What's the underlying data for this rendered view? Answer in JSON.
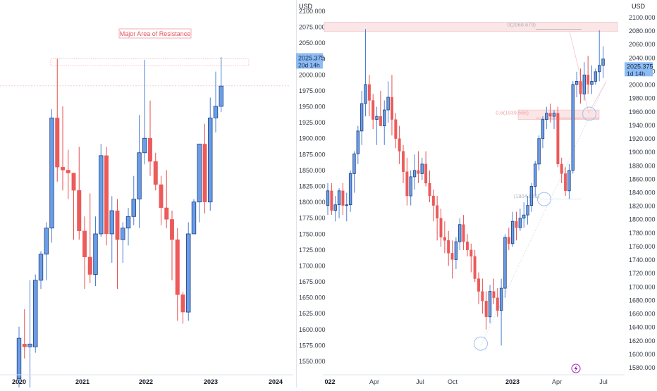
{
  "colors": {
    "up_body": "#6a9de8",
    "up_wick": "#4a7fd6",
    "down_body": "#ec5a5a",
    "down_wick": "#e84e4e",
    "price_tag": "#8fbcf2",
    "resistance": "#f19ba0",
    "circle": "#9ec1ee",
    "divider": "#e0e3eb",
    "flash_icon": "#9c27b0"
  },
  "chart_data": [
    {
      "type": "candlestick",
      "timeframe": "monthly",
      "currency_label": "",
      "ylim": [
        1550,
        2140
      ],
      "x_ticks": [
        "2020",
        "2021",
        "2022",
        "2023",
        "2024"
      ],
      "last_price": "2025.375",
      "countdown": "20d 14h",
      "annotation": "Major Area of Resistance",
      "resistance_zone": [
        2060,
        2072
      ],
      "candles": [
        {
          "o": 1520,
          "h": 1610,
          "l": 1455,
          "c": 1590
        },
        {
          "o": 1580,
          "h": 1640,
          "l": 1555,
          "c": 1575
        },
        {
          "o": 1575,
          "h": 1690,
          "l": 1470,
          "c": 1580
        },
        {
          "o": 1575,
          "h": 1700,
          "l": 1565,
          "c": 1690
        },
        {
          "o": 1690,
          "h": 1740,
          "l": 1675,
          "c": 1735
        },
        {
          "o": 1735,
          "h": 1790,
          "l": 1690,
          "c": 1780
        },
        {
          "o": 1780,
          "h": 1985,
          "l": 1755,
          "c": 1970
        },
        {
          "o": 1970,
          "h": 2072,
          "l": 1860,
          "c": 1885
        },
        {
          "o": 1885,
          "h": 1990,
          "l": 1845,
          "c": 1880
        },
        {
          "o": 1880,
          "h": 1915,
          "l": 1830,
          "c": 1875
        },
        {
          "o": 1875,
          "h": 1870,
          "l": 1760,
          "c": 1845
        },
        {
          "o": 1845,
          "h": 1920,
          "l": 1760,
          "c": 1775
        },
        {
          "o": 1775,
          "h": 1800,
          "l": 1675,
          "c": 1730
        },
        {
          "o": 1730,
          "h": 1840,
          "l": 1685,
          "c": 1700
        },
        {
          "o": 1700,
          "h": 1800,
          "l": 1680,
          "c": 1770
        },
        {
          "o": 1770,
          "h": 1925,
          "l": 1765,
          "c": 1905
        },
        {
          "o": 1905,
          "h": 1920,
          "l": 1750,
          "c": 1770
        },
        {
          "o": 1770,
          "h": 1835,
          "l": 1720,
          "c": 1810
        },
        {
          "o": 1810,
          "h": 1830,
          "l": 1675,
          "c": 1760
        },
        {
          "o": 1760,
          "h": 1790,
          "l": 1720,
          "c": 1780
        },
        {
          "o": 1780,
          "h": 1815,
          "l": 1750,
          "c": 1800
        },
        {
          "o": 1800,
          "h": 1870,
          "l": 1785,
          "c": 1830
        },
        {
          "o": 1830,
          "h": 1975,
          "l": 1780,
          "c": 1910
        },
        {
          "o": 1910,
          "h": 2070,
          "l": 1890,
          "c": 1935
        },
        {
          "o": 1935,
          "h": 2000,
          "l": 1870,
          "c": 1895
        },
        {
          "o": 1895,
          "h": 1910,
          "l": 1845,
          "c": 1855
        },
        {
          "o": 1855,
          "h": 1870,
          "l": 1785,
          "c": 1815
        },
        {
          "o": 1815,
          "h": 1880,
          "l": 1780,
          "c": 1795
        },
        {
          "o": 1795,
          "h": 1810,
          "l": 1690,
          "c": 1760
        },
        {
          "o": 1760,
          "h": 1780,
          "l": 1620,
          "c": 1665
        },
        {
          "o": 1665,
          "h": 1670,
          "l": 1615,
          "c": 1635
        },
        {
          "o": 1635,
          "h": 1790,
          "l": 1620,
          "c": 1770
        },
        {
          "o": 1770,
          "h": 1830,
          "l": 1770,
          "c": 1825
        },
        {
          "o": 1825,
          "h": 1920,
          "l": 1790,
          "c": 1925
        },
        {
          "o": 1925,
          "h": 1960,
          "l": 1805,
          "c": 1825
        },
        {
          "o": 1825,
          "h": 2005,
          "l": 1810,
          "c": 1970
        },
        {
          "o": 1970,
          "h": 2050,
          "l": 1945,
          "c": 1990
        },
        {
          "o": 1990,
          "h": 2075,
          "l": 1980,
          "c": 2025
        }
      ]
    },
    {
      "type": "candlestick",
      "timeframe": "weekly",
      "currency_label": "USD",
      "ylim": [
        1565,
        2120
      ],
      "x_ticks": [
        "022",
        "Apr",
        "Jul",
        "Oct",
        "2023",
        "Apr",
        "Jul"
      ],
      "bold_x_ticks": [
        "022",
        "2023"
      ],
      "last_price": "2025.375",
      "countdown": "1d 14h",
      "fib_high_label": "0(2068.679)",
      "fib_mid_label": "0.6(1939.566)",
      "fib_low_label": "(1804.858)",
      "candles": [
        {
          "o": 1795,
          "h": 1830,
          "l": 1780,
          "c": 1818
        },
        {
          "o": 1818,
          "h": 1830,
          "l": 1780,
          "c": 1787
        },
        {
          "o": 1787,
          "h": 1810,
          "l": 1770,
          "c": 1796
        },
        {
          "o": 1796,
          "h": 1822,
          "l": 1775,
          "c": 1818
        },
        {
          "o": 1818,
          "h": 1830,
          "l": 1780,
          "c": 1795
        },
        {
          "o": 1795,
          "h": 1815,
          "l": 1770,
          "c": 1796
        },
        {
          "o": 1796,
          "h": 1850,
          "l": 1785,
          "c": 1845
        },
        {
          "o": 1845,
          "h": 1880,
          "l": 1815,
          "c": 1876
        },
        {
          "o": 1876,
          "h": 1920,
          "l": 1860,
          "c": 1912
        },
        {
          "o": 1912,
          "h": 1975,
          "l": 1890,
          "c": 1955
        },
        {
          "o": 1955,
          "h": 2072,
          "l": 1935,
          "c": 1985
        },
        {
          "o": 1985,
          "h": 2000,
          "l": 1935,
          "c": 1960
        },
        {
          "o": 1960,
          "h": 1970,
          "l": 1915,
          "c": 1930
        },
        {
          "o": 1930,
          "h": 1950,
          "l": 1890,
          "c": 1935
        },
        {
          "o": 1935,
          "h": 1975,
          "l": 1920,
          "c": 1920
        },
        {
          "o": 1920,
          "h": 1960,
          "l": 1890,
          "c": 1945
        },
        {
          "o": 1945,
          "h": 1990,
          "l": 1925,
          "c": 1965
        },
        {
          "o": 1965,
          "h": 2000,
          "l": 1905,
          "c": 1930
        },
        {
          "o": 1930,
          "h": 1940,
          "l": 1885,
          "c": 1900
        },
        {
          "o": 1900,
          "h": 1920,
          "l": 1860,
          "c": 1880
        },
        {
          "o": 1880,
          "h": 1890,
          "l": 1830,
          "c": 1848
        },
        {
          "o": 1848,
          "h": 1870,
          "l": 1795,
          "c": 1810
        },
        {
          "o": 1810,
          "h": 1850,
          "l": 1795,
          "c": 1840
        },
        {
          "o": 1840,
          "h": 1875,
          "l": 1820,
          "c": 1850
        },
        {
          "o": 1850,
          "h": 1880,
          "l": 1830,
          "c": 1845
        },
        {
          "o": 1845,
          "h": 1870,
          "l": 1835,
          "c": 1860
        },
        {
          "o": 1860,
          "h": 1880,
          "l": 1825,
          "c": 1830
        },
        {
          "o": 1830,
          "h": 1850,
          "l": 1800,
          "c": 1810
        },
        {
          "o": 1810,
          "h": 1820,
          "l": 1770,
          "c": 1795
        },
        {
          "o": 1795,
          "h": 1810,
          "l": 1740,
          "c": 1775
        },
        {
          "o": 1775,
          "h": 1790,
          "l": 1730,
          "c": 1745
        },
        {
          "o": 1745,
          "h": 1770,
          "l": 1720,
          "c": 1740
        },
        {
          "o": 1740,
          "h": 1755,
          "l": 1700,
          "c": 1720
        },
        {
          "o": 1720,
          "h": 1740,
          "l": 1680,
          "c": 1710
        },
        {
          "o": 1710,
          "h": 1745,
          "l": 1695,
          "c": 1738
        },
        {
          "o": 1738,
          "h": 1775,
          "l": 1725,
          "c": 1765
        },
        {
          "o": 1765,
          "h": 1780,
          "l": 1725,
          "c": 1738
        },
        {
          "o": 1738,
          "h": 1750,
          "l": 1715,
          "c": 1725
        },
        {
          "o": 1725,
          "h": 1735,
          "l": 1690,
          "c": 1715
        },
        {
          "o": 1715,
          "h": 1725,
          "l": 1675,
          "c": 1680
        },
        {
          "o": 1680,
          "h": 1690,
          "l": 1640,
          "c": 1660
        },
        {
          "o": 1660,
          "h": 1680,
          "l": 1625,
          "c": 1645
        },
        {
          "o": 1645,
          "h": 1660,
          "l": 1600,
          "c": 1620
        },
        {
          "o": 1620,
          "h": 1670,
          "l": 1610,
          "c": 1660
        },
        {
          "o": 1660,
          "h": 1680,
          "l": 1640,
          "c": 1650
        },
        {
          "o": 1650,
          "h": 1665,
          "l": 1620,
          "c": 1630
        },
        {
          "o": 1630,
          "h": 1680,
          "l": 1575,
          "c": 1665
        },
        {
          "o": 1665,
          "h": 1750,
          "l": 1650,
          "c": 1745
        },
        {
          "o": 1745,
          "h": 1760,
          "l": 1725,
          "c": 1735
        },
        {
          "o": 1735,
          "h": 1785,
          "l": 1730,
          "c": 1770
        },
        {
          "o": 1770,
          "h": 1785,
          "l": 1740,
          "c": 1760
        },
        {
          "o": 1760,
          "h": 1790,
          "l": 1755,
          "c": 1775
        },
        {
          "o": 1775,
          "h": 1800,
          "l": 1760,
          "c": 1780
        },
        {
          "o": 1780,
          "h": 1810,
          "l": 1765,
          "c": 1795
        },
        {
          "o": 1795,
          "h": 1830,
          "l": 1785,
          "c": 1825
        },
        {
          "o": 1825,
          "h": 1865,
          "l": 1810,
          "c": 1860
        },
        {
          "o": 1860,
          "h": 1905,
          "l": 1850,
          "c": 1900
        },
        {
          "o": 1900,
          "h": 1935,
          "l": 1885,
          "c": 1930
        },
        {
          "o": 1930,
          "h": 1950,
          "l": 1915,
          "c": 1940
        },
        {
          "o": 1940,
          "h": 1955,
          "l": 1925,
          "c": 1935
        },
        {
          "o": 1935,
          "h": 1945,
          "l": 1915,
          "c": 1940
        },
        {
          "o": 1940,
          "h": 1950,
          "l": 1855,
          "c": 1860
        },
        {
          "o": 1860,
          "h": 1870,
          "l": 1830,
          "c": 1845
        },
        {
          "o": 1845,
          "h": 1855,
          "l": 1810,
          "c": 1818
        },
        {
          "o": 1818,
          "h": 1860,
          "l": 1805,
          "c": 1850
        },
        {
          "o": 1850,
          "h": 1990,
          "l": 1845,
          "c": 1985
        },
        {
          "o": 1985,
          "h": 2005,
          "l": 1965,
          "c": 1990
        },
        {
          "o": 1990,
          "h": 2010,
          "l": 1955,
          "c": 1970
        },
        {
          "o": 1970,
          "h": 2020,
          "l": 1960,
          "c": 2000
        },
        {
          "o": 2000,
          "h": 2030,
          "l": 1970,
          "c": 1985
        },
        {
          "o": 1985,
          "h": 2015,
          "l": 1970,
          "c": 1990
        },
        {
          "o": 1990,
          "h": 2010,
          "l": 1985,
          "c": 2005
        },
        {
          "o": 2005,
          "h": 2070,
          "l": 1990,
          "c": 2015
        },
        {
          "o": 2015,
          "h": 2045,
          "l": 1995,
          "c": 2025
        }
      ]
    }
  ]
}
